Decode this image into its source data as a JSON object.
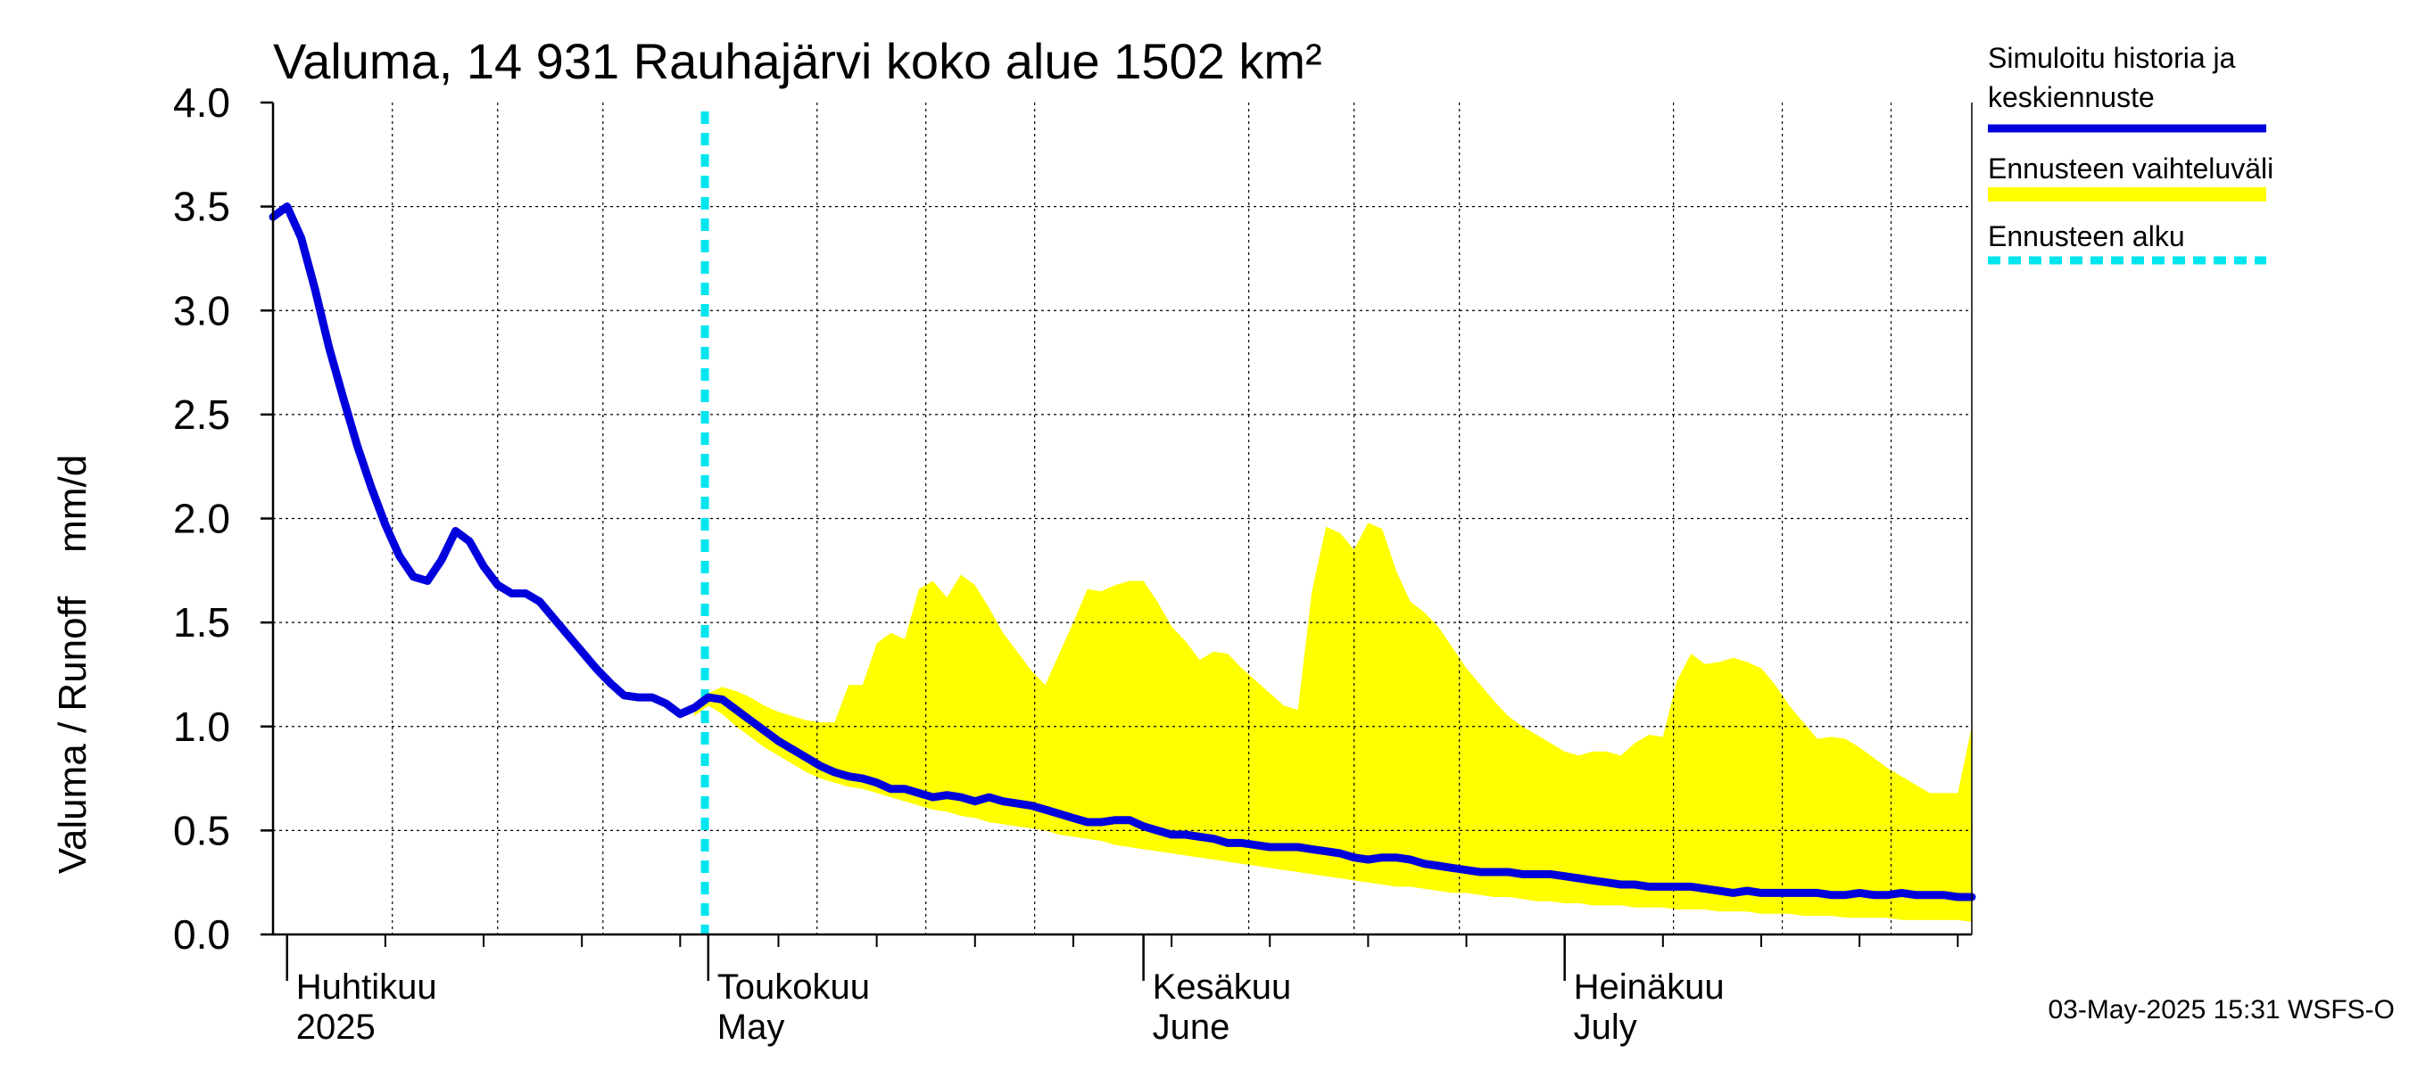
{
  "chart_data": {
    "type": "line",
    "title": "Valuma, 14 931 Rauhajärvi koko alue 1502 km²",
    "ylabel": "Valuma / Runoff    mm/d",
    "ylim": [
      0,
      4
    ],
    "yticks": [
      "0.0",
      "0.5",
      "1.0",
      "1.5",
      "2.0",
      "2.5",
      "3.0",
      "3.5",
      "4.0"
    ],
    "xlim": [
      "2025-03-31",
      "2025-07-30"
    ],
    "month_labels": [
      {
        "date": "2025-04-01",
        "fi": "Huhtikuu",
        "en": "2025"
      },
      {
        "date": "2025-05-01",
        "fi": "Toukokuu",
        "en": "May"
      },
      {
        "date": "2025-06-01",
        "fi": "Kesäkuu",
        "en": "June"
      },
      {
        "date": "2025-07-01",
        "fi": "Heinäkuu",
        "en": "July"
      }
    ],
    "grid": true,
    "forecast_start": "2025-04-30",
    "legend": {
      "position": "right",
      "entries": [
        {
          "label": "Simuloitu historia ja keskiennuste",
          "lines": [
            "Simuloitu historia ja",
            "keskiennuste"
          ],
          "color": "#0000dd",
          "style": "solid"
        },
        {
          "label": "Ennusteen vaihteluväli",
          "lines": [
            "Ennusteen vaihteluväli"
          ],
          "color": "#ffff00",
          "style": "band"
        },
        {
          "label": "Ennusteen alku",
          "lines": [
            "Ennusteen alku"
          ],
          "color": "#00e5ee",
          "style": "dashed"
        }
      ]
    },
    "series": [
      {
        "name": "Simuloitu historia ja keskiennuste",
        "color": "#0000dd",
        "points": [
          [
            "2025-03-31",
            3.45
          ],
          [
            "2025-04-01",
            3.5
          ],
          [
            "2025-04-02",
            3.35
          ],
          [
            "2025-04-03",
            3.1
          ],
          [
            "2025-04-04",
            2.82
          ],
          [
            "2025-04-05",
            2.58
          ],
          [
            "2025-04-06",
            2.35
          ],
          [
            "2025-04-07",
            2.15
          ],
          [
            "2025-04-08",
            1.97
          ],
          [
            "2025-04-09",
            1.82
          ],
          [
            "2025-04-10",
            1.72
          ],
          [
            "2025-04-11",
            1.7
          ],
          [
            "2025-04-12",
            1.8
          ],
          [
            "2025-04-13",
            1.94
          ],
          [
            "2025-04-14",
            1.89
          ],
          [
            "2025-04-15",
            1.77
          ],
          [
            "2025-04-16",
            1.68
          ],
          [
            "2025-04-17",
            1.64
          ],
          [
            "2025-04-18",
            1.64
          ],
          [
            "2025-04-19",
            1.6
          ],
          [
            "2025-04-20",
            1.52
          ],
          [
            "2025-04-21",
            1.44
          ],
          [
            "2025-04-22",
            1.36
          ],
          [
            "2025-04-23",
            1.28
          ],
          [
            "2025-04-24",
            1.21
          ],
          [
            "2025-04-25",
            1.15
          ],
          [
            "2025-04-26",
            1.14
          ],
          [
            "2025-04-27",
            1.14
          ],
          [
            "2025-04-28",
            1.11
          ],
          [
            "2025-04-29",
            1.06
          ],
          [
            "2025-04-30",
            1.09
          ],
          [
            "2025-05-01",
            1.14
          ],
          [
            "2025-05-02",
            1.13
          ],
          [
            "2025-05-03",
            1.08
          ],
          [
            "2025-05-04",
            1.03
          ],
          [
            "2025-05-05",
            0.98
          ],
          [
            "2025-05-06",
            0.93
          ],
          [
            "2025-05-07",
            0.89
          ],
          [
            "2025-05-08",
            0.85
          ],
          [
            "2025-05-09",
            0.81
          ],
          [
            "2025-05-10",
            0.78
          ],
          [
            "2025-05-11",
            0.76
          ],
          [
            "2025-05-12",
            0.75
          ],
          [
            "2025-05-13",
            0.73
          ],
          [
            "2025-05-14",
            0.7
          ],
          [
            "2025-05-15",
            0.7
          ],
          [
            "2025-05-16",
            0.68
          ],
          [
            "2025-05-17",
            0.66
          ],
          [
            "2025-05-18",
            0.67
          ],
          [
            "2025-05-19",
            0.66
          ],
          [
            "2025-05-20",
            0.64
          ],
          [
            "2025-05-21",
            0.66
          ],
          [
            "2025-05-22",
            0.64
          ],
          [
            "2025-05-23",
            0.63
          ],
          [
            "2025-05-24",
            0.62
          ],
          [
            "2025-05-25",
            0.6
          ],
          [
            "2025-05-26",
            0.58
          ],
          [
            "2025-05-27",
            0.56
          ],
          [
            "2025-05-28",
            0.54
          ],
          [
            "2025-05-29",
            0.54
          ],
          [
            "2025-05-30",
            0.55
          ],
          [
            "2025-05-31",
            0.55
          ],
          [
            "2025-06-01",
            0.52
          ],
          [
            "2025-06-02",
            0.5
          ],
          [
            "2025-06-03",
            0.48
          ],
          [
            "2025-06-04",
            0.48
          ],
          [
            "2025-06-05",
            0.47
          ],
          [
            "2025-06-06",
            0.46
          ],
          [
            "2025-06-07",
            0.44
          ],
          [
            "2025-06-08",
            0.44
          ],
          [
            "2025-06-09",
            0.43
          ],
          [
            "2025-06-10",
            0.42
          ],
          [
            "2025-06-11",
            0.42
          ],
          [
            "2025-06-12",
            0.42
          ],
          [
            "2025-06-13",
            0.41
          ],
          [
            "2025-06-14",
            0.4
          ],
          [
            "2025-06-15",
            0.39
          ],
          [
            "2025-06-16",
            0.37
          ],
          [
            "2025-06-17",
            0.36
          ],
          [
            "2025-06-18",
            0.37
          ],
          [
            "2025-06-19",
            0.37
          ],
          [
            "2025-06-20",
            0.36
          ],
          [
            "2025-06-21",
            0.34
          ],
          [
            "2025-06-22",
            0.33
          ],
          [
            "2025-06-23",
            0.32
          ],
          [
            "2025-06-24",
            0.31
          ],
          [
            "2025-06-25",
            0.3
          ],
          [
            "2025-06-26",
            0.3
          ],
          [
            "2025-06-27",
            0.3
          ],
          [
            "2025-06-28",
            0.29
          ],
          [
            "2025-06-29",
            0.29
          ],
          [
            "2025-06-30",
            0.29
          ],
          [
            "2025-07-01",
            0.28
          ],
          [
            "2025-07-02",
            0.27
          ],
          [
            "2025-07-03",
            0.26
          ],
          [
            "2025-07-04",
            0.25
          ],
          [
            "2025-07-05",
            0.24
          ],
          [
            "2025-07-06",
            0.24
          ],
          [
            "2025-07-07",
            0.23
          ],
          [
            "2025-07-08",
            0.23
          ],
          [
            "2025-07-09",
            0.23
          ],
          [
            "2025-07-10",
            0.23
          ],
          [
            "2025-07-11",
            0.22
          ],
          [
            "2025-07-12",
            0.21
          ],
          [
            "2025-07-13",
            0.2
          ],
          [
            "2025-07-14",
            0.21
          ],
          [
            "2025-07-15",
            0.2
          ],
          [
            "2025-07-16",
            0.2
          ],
          [
            "2025-07-17",
            0.2
          ],
          [
            "2025-07-18",
            0.2
          ],
          [
            "2025-07-19",
            0.2
          ],
          [
            "2025-07-20",
            0.19
          ],
          [
            "2025-07-21",
            0.19
          ],
          [
            "2025-07-22",
            0.2
          ],
          [
            "2025-07-23",
            0.19
          ],
          [
            "2025-07-24",
            0.19
          ],
          [
            "2025-07-25",
            0.2
          ],
          [
            "2025-07-26",
            0.19
          ],
          [
            "2025-07-27",
            0.19
          ],
          [
            "2025-07-28",
            0.19
          ],
          [
            "2025-07-29",
            0.18
          ],
          [
            "2025-07-30",
            0.18
          ]
        ]
      },
      {
        "name": "Ennusteen vaihteluväli",
        "color": "#ffff00",
        "type": "band",
        "points": [
          [
            "2025-04-30",
            1.05,
            1.09
          ],
          [
            "2025-05-01",
            1.1,
            1.16
          ],
          [
            "2025-05-02",
            1.06,
            1.19
          ],
          [
            "2025-05-03",
            1.0,
            1.17
          ],
          [
            "2025-05-04",
            0.95,
            1.14
          ],
          [
            "2025-05-05",
            0.9,
            1.1
          ],
          [
            "2025-05-06",
            0.86,
            1.07
          ],
          [
            "2025-05-07",
            0.82,
            1.05
          ],
          [
            "2025-05-08",
            0.78,
            1.03
          ],
          [
            "2025-05-09",
            0.75,
            1.02
          ],
          [
            "2025-05-10",
            0.73,
            1.02
          ],
          [
            "2025-05-11",
            0.71,
            1.2
          ],
          [
            "2025-05-12",
            0.7,
            1.2
          ],
          [
            "2025-05-13",
            0.68,
            1.4
          ],
          [
            "2025-05-14",
            0.66,
            1.45
          ],
          [
            "2025-05-15",
            0.64,
            1.42
          ],
          [
            "2025-05-16",
            0.62,
            1.66
          ],
          [
            "2025-05-17",
            0.6,
            1.7
          ],
          [
            "2025-05-18",
            0.59,
            1.62
          ],
          [
            "2025-05-19",
            0.57,
            1.73
          ],
          [
            "2025-05-20",
            0.56,
            1.68
          ],
          [
            "2025-05-21",
            0.54,
            1.57
          ],
          [
            "2025-05-22",
            0.53,
            1.45
          ],
          [
            "2025-05-23",
            0.52,
            1.36
          ],
          [
            "2025-05-24",
            0.51,
            1.27
          ],
          [
            "2025-05-25",
            0.5,
            1.2
          ],
          [
            "2025-05-26",
            0.48,
            1.35
          ],
          [
            "2025-05-27",
            0.47,
            1.5
          ],
          [
            "2025-05-28",
            0.46,
            1.66
          ],
          [
            "2025-05-29",
            0.45,
            1.65
          ],
          [
            "2025-05-30",
            0.43,
            1.68
          ],
          [
            "2025-05-31",
            0.42,
            1.7
          ],
          [
            "2025-06-01",
            0.41,
            1.7
          ],
          [
            "2025-06-02",
            0.4,
            1.6
          ],
          [
            "2025-06-03",
            0.39,
            1.48
          ],
          [
            "2025-06-04",
            0.38,
            1.41
          ],
          [
            "2025-06-05",
            0.37,
            1.32
          ],
          [
            "2025-06-06",
            0.36,
            1.36
          ],
          [
            "2025-06-07",
            0.35,
            1.35
          ],
          [
            "2025-06-08",
            0.34,
            1.28
          ],
          [
            "2025-06-09",
            0.33,
            1.22
          ],
          [
            "2025-06-10",
            0.32,
            1.16
          ],
          [
            "2025-06-11",
            0.31,
            1.1
          ],
          [
            "2025-06-12",
            0.3,
            1.08
          ],
          [
            "2025-06-13",
            0.29,
            1.65
          ],
          [
            "2025-06-14",
            0.28,
            1.96
          ],
          [
            "2025-06-15",
            0.27,
            1.93
          ],
          [
            "2025-06-16",
            0.26,
            1.85
          ],
          [
            "2025-06-17",
            0.25,
            1.98
          ],
          [
            "2025-06-18",
            0.24,
            1.95
          ],
          [
            "2025-06-19",
            0.23,
            1.75
          ],
          [
            "2025-06-20",
            0.23,
            1.6
          ],
          [
            "2025-06-21",
            0.22,
            1.55
          ],
          [
            "2025-06-22",
            0.21,
            1.48
          ],
          [
            "2025-06-23",
            0.2,
            1.38
          ],
          [
            "2025-06-24",
            0.2,
            1.28
          ],
          [
            "2025-06-25",
            0.19,
            1.2
          ],
          [
            "2025-06-26",
            0.18,
            1.12
          ],
          [
            "2025-06-27",
            0.18,
            1.05
          ],
          [
            "2025-06-28",
            0.17,
            1.0
          ],
          [
            "2025-06-29",
            0.16,
            0.96
          ],
          [
            "2025-06-30",
            0.16,
            0.92
          ],
          [
            "2025-07-01",
            0.15,
            0.88
          ],
          [
            "2025-07-02",
            0.15,
            0.86
          ],
          [
            "2025-07-03",
            0.14,
            0.88
          ],
          [
            "2025-07-04",
            0.14,
            0.88
          ],
          [
            "2025-07-05",
            0.14,
            0.86
          ],
          [
            "2025-07-06",
            0.13,
            0.92
          ],
          [
            "2025-07-07",
            0.13,
            0.96
          ],
          [
            "2025-07-08",
            0.13,
            0.95
          ],
          [
            "2025-07-09",
            0.12,
            1.22
          ],
          [
            "2025-07-10",
            0.12,
            1.35
          ],
          [
            "2025-07-11",
            0.12,
            1.3
          ],
          [
            "2025-07-12",
            0.11,
            1.31
          ],
          [
            "2025-07-13",
            0.11,
            1.33
          ],
          [
            "2025-07-14",
            0.11,
            1.31
          ],
          [
            "2025-07-15",
            0.1,
            1.28
          ],
          [
            "2025-07-16",
            0.1,
            1.2
          ],
          [
            "2025-07-17",
            0.1,
            1.1
          ],
          [
            "2025-07-18",
            0.09,
            1.02
          ],
          [
            "2025-07-19",
            0.09,
            0.94
          ],
          [
            "2025-07-20",
            0.09,
            0.95
          ],
          [
            "2025-07-21",
            0.08,
            0.94
          ],
          [
            "2025-07-22",
            0.08,
            0.9
          ],
          [
            "2025-07-23",
            0.08,
            0.85
          ],
          [
            "2025-07-24",
            0.08,
            0.8
          ],
          [
            "2025-07-25",
            0.07,
            0.76
          ],
          [
            "2025-07-26",
            0.07,
            0.72
          ],
          [
            "2025-07-27",
            0.07,
            0.68
          ],
          [
            "2025-07-28",
            0.07,
            0.68
          ],
          [
            "2025-07-29",
            0.07,
            0.68
          ],
          [
            "2025-07-30",
            0.06,
            1.0
          ]
        ]
      }
    ],
    "footer": "03-May-2025 15:31 WSFS-O"
  }
}
